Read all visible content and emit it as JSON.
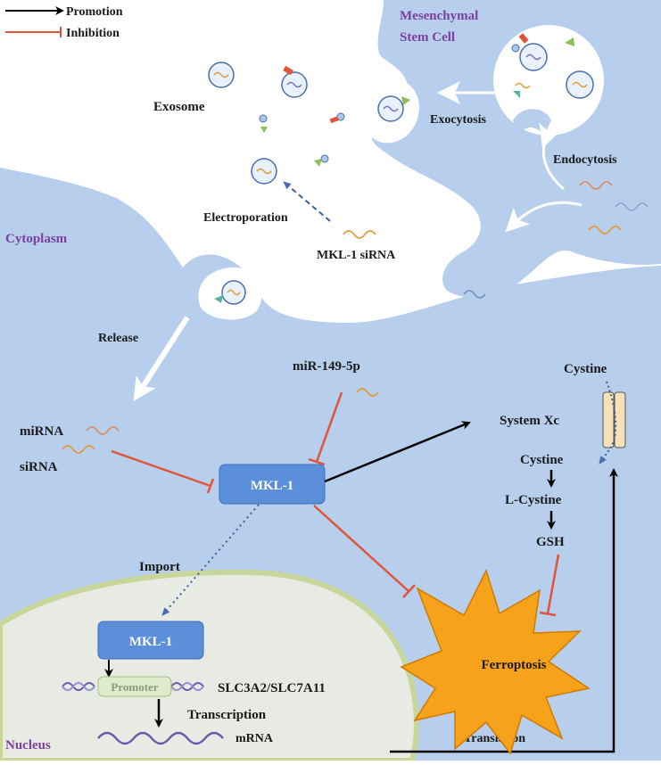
{
  "legend": {
    "promotion": "Promotion",
    "inhibition": "Inhibition"
  },
  "colors": {
    "promotion": "#000000",
    "inhibition": "#e0543a",
    "cell_fill": "#b7cfec",
    "nucleus_fill": "#e8ebe4",
    "nucleus_border": "#c9d69a",
    "mkl_box": "#5b8fd9",
    "ferroptosis": "#f7a21b",
    "label_purple": "#7b3fa0"
  },
  "regions": {
    "msc": "Mesenchymal\nStem Cell",
    "cytoplasm": "Cytoplasm",
    "nucleus": "Nucleus"
  },
  "labels": {
    "exosome": "Exosome",
    "exocytosis": "Exocytosis",
    "endocytosis": "Endocytosis",
    "electroporation": "Electroporation",
    "mkl_sirna": "MKL-1 siRNA",
    "release": "Release",
    "mir": "miR-149-5p",
    "mirna": "miRNA",
    "sirna": "siRNA",
    "mkl1": "MKL-1",
    "mkl1_nuclear": "MKL-1",
    "import": "Import",
    "promoter": "Promoter",
    "genes": "SLC3A2/SLC7A11",
    "transcription": "Transcription",
    "mrna": "mRNA",
    "translation": "Translation",
    "ferroptosis": "Ferroptosis",
    "system_xc": "System Xc",
    "cystine_top": "Cystine",
    "cystine": "Cystine",
    "l_cystine": "L-Cystine",
    "gsh": "GSH"
  }
}
